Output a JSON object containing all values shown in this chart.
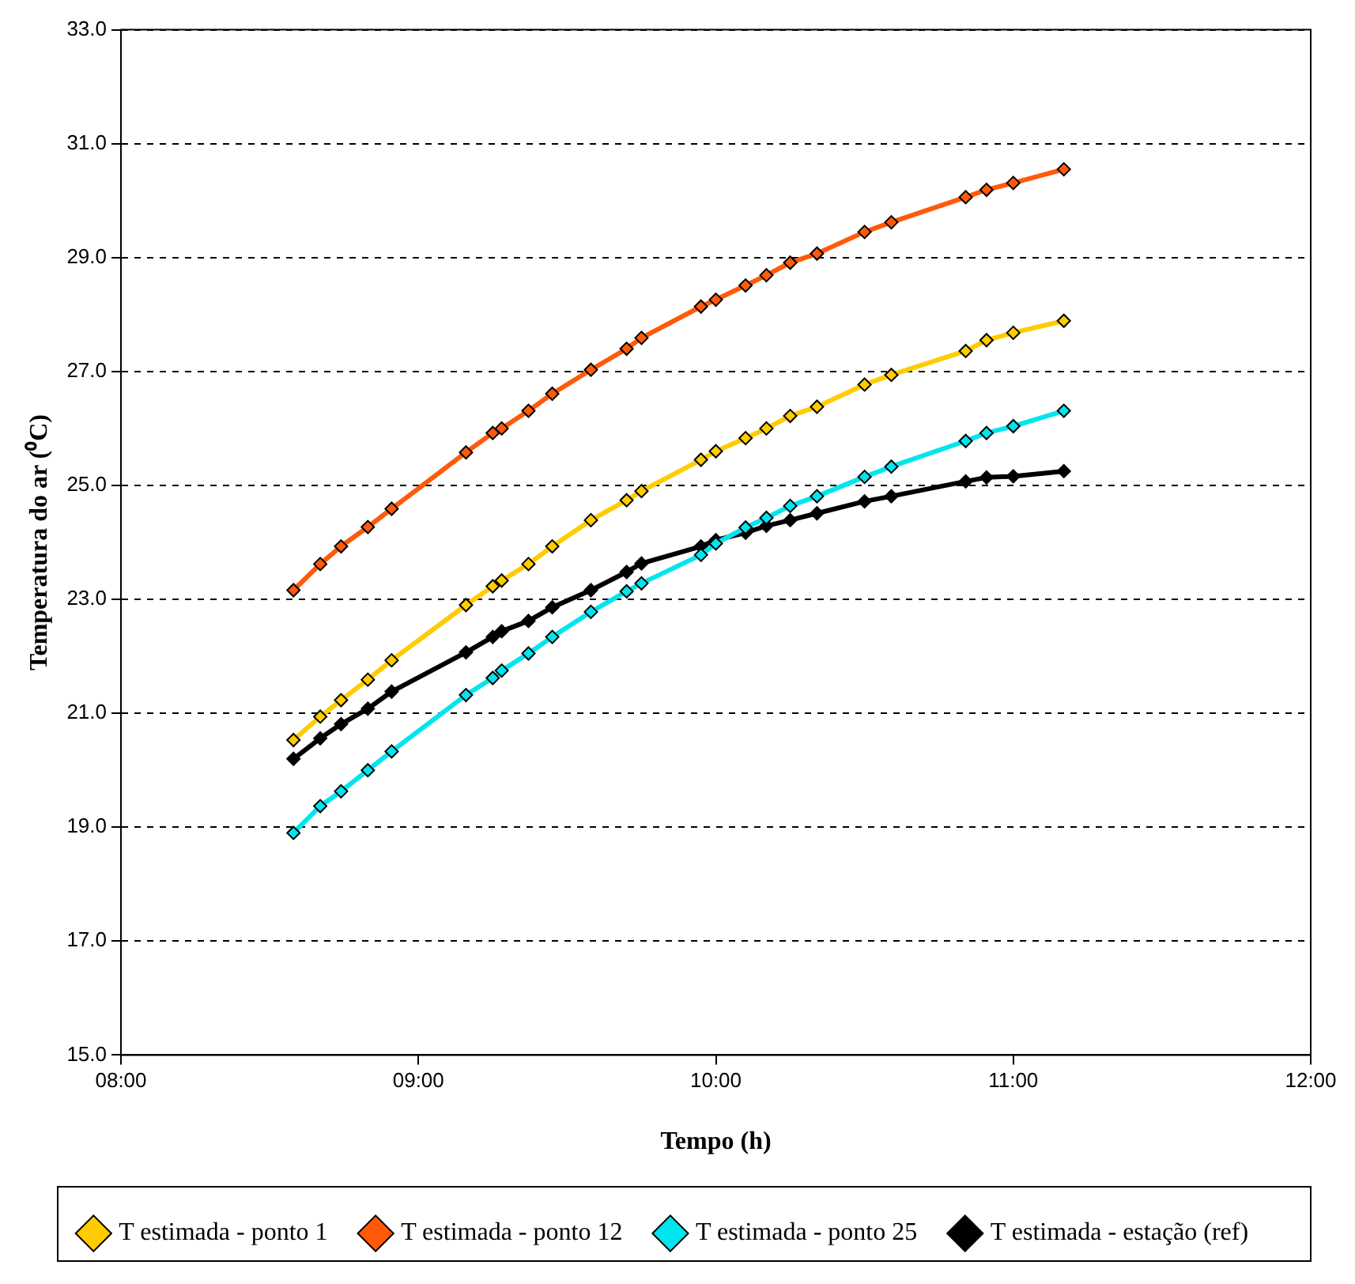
{
  "chart_data": {
    "type": "line",
    "xlabel": "Tempo (h)",
    "ylabel": "Temperatura do ar (⁰C)",
    "x": [
      8.58,
      8.67,
      8.74,
      8.83,
      8.91,
      9.16,
      9.25,
      9.28,
      9.37,
      9.45,
      9.58,
      9.7,
      9.75,
      9.95,
      10.0,
      10.1,
      10.17,
      10.25,
      10.34,
      10.5,
      10.59,
      10.84,
      10.91,
      11.0,
      11.17
    ],
    "series": [
      {
        "name": "T estimada - ponto 1",
        "color": "#ffcc00",
        "values": [
          20.53,
          20.94,
          21.23,
          21.59,
          21.93,
          22.9,
          23.23,
          23.33,
          23.62,
          23.93,
          24.39,
          24.74,
          24.9,
          25.45,
          25.6,
          25.83,
          26.0,
          26.22,
          26.38,
          26.77,
          26.94,
          27.36,
          27.55,
          27.68,
          27.89
        ]
      },
      {
        "name": "T estimada - ponto 12",
        "color": "#ff5a0a",
        "values": [
          23.16,
          23.62,
          23.93,
          24.27,
          24.59,
          25.58,
          25.92,
          26.0,
          26.31,
          26.61,
          27.03,
          27.4,
          27.59,
          28.14,
          28.26,
          28.51,
          28.69,
          28.91,
          29.07,
          29.45,
          29.62,
          30.06,
          30.19,
          30.31,
          30.55
        ]
      },
      {
        "name": "T estimada - ponto 25",
        "color": "#00e5ee",
        "values": [
          18.9,
          19.37,
          19.63,
          20.0,
          20.33,
          21.32,
          21.62,
          21.75,
          22.05,
          22.34,
          22.78,
          23.14,
          23.28,
          23.78,
          23.98,
          24.26,
          24.43,
          24.64,
          24.81,
          25.15,
          25.33,
          25.78,
          25.92,
          26.04,
          26.31
        ]
      },
      {
        "name": "T estimada - estação (ref)",
        "color": "#000000",
        "values": [
          20.2,
          20.56,
          20.81,
          21.08,
          21.38,
          22.07,
          22.34,
          22.44,
          22.62,
          22.86,
          23.16,
          23.48,
          23.63,
          23.93,
          24.04,
          24.17,
          24.29,
          24.39,
          24.51,
          24.72,
          24.81,
          25.07,
          25.14,
          25.16,
          25.25
        ]
      }
    ],
    "xlim": [
      8,
      12
    ],
    "xticks": [
      {
        "value": 8,
        "label": "08:00"
      },
      {
        "value": 9,
        "label": "09:00"
      },
      {
        "value": 10,
        "label": "10:00"
      },
      {
        "value": 11,
        "label": "11:00"
      },
      {
        "value": 12,
        "label": "12:00"
      }
    ],
    "ylim": [
      15,
      33
    ],
    "yticks": [
      {
        "value": 15,
        "label": "15.0"
      },
      {
        "value": 17,
        "label": "17.0"
      },
      {
        "value": 19,
        "label": "19.0"
      },
      {
        "value": 21,
        "label": "21.0"
      },
      {
        "value": 23,
        "label": "23.0"
      },
      {
        "value": 25,
        "label": "25.0"
      },
      {
        "value": 27,
        "label": "27.0"
      },
      {
        "value": 29,
        "label": "29.0"
      },
      {
        "value": 31,
        "label": "31.0"
      },
      {
        "value": 33,
        "label": "33.0"
      }
    ],
    "grid": "y",
    "legend": "bottom",
    "marker": "diamond",
    "line_style": "solid"
  }
}
